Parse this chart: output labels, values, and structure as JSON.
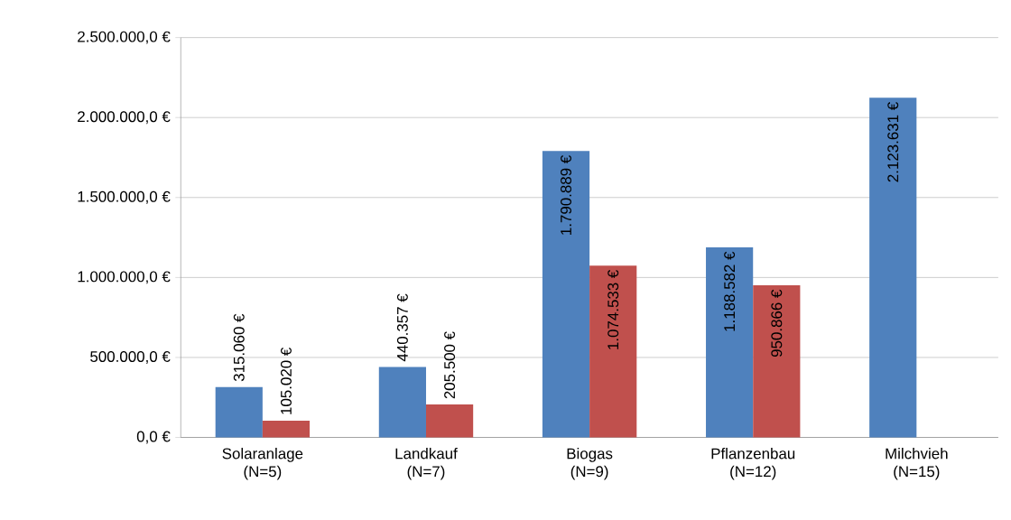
{
  "chart_data": {
    "type": "bar",
    "categories": [
      "Solaranlage (N=5)",
      "Landkauf (N=7)",
      "Biogas (N=9)",
      "Pflanzenbau (N=12)",
      "Milchvieh (N=15)"
    ],
    "series": [
      {
        "color": "#4f81bd",
        "values": [
          315060,
          440357,
          1790889,
          1188582,
          2123631
        ],
        "value_labels": [
          "315.060 €",
          "440.357 €",
          "1.790.889 €",
          "1.188.582 €",
          "2.123.631 €"
        ]
      },
      {
        "color": "#c0504d",
        "values": [
          105020,
          205500,
          1074533,
          950866,
          null
        ],
        "value_labels": [
          "105.020 €",
          "205.500 €",
          "1.074.533 €",
          "950.866 €",
          null
        ]
      }
    ],
    "ylim": [
      0,
      2500000
    ],
    "yticks": [
      {
        "value": 0,
        "label": "0,0 €"
      },
      {
        "value": 500000,
        "label": "500.000,0 €"
      },
      {
        "value": 1000000,
        "label": "1.000.000,0 €"
      },
      {
        "value": 1500000,
        "label": "1.500.000,0 €"
      },
      {
        "value": 2000000,
        "label": "2.000.000,0 €"
      },
      {
        "value": 2500000,
        "label": "2.500.000,0 €"
      }
    ],
    "grid": "y"
  }
}
